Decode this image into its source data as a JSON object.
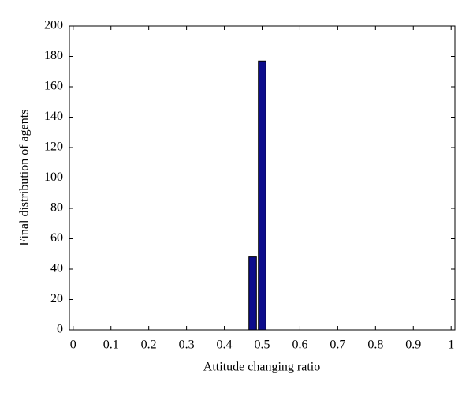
{
  "chart_data": {
    "type": "bar",
    "x": [
      0.475,
      0.5
    ],
    "values": [
      48,
      177
    ],
    "color": "#0c0c8c",
    "xlabel": "Attitude changing ratio",
    "ylabel": "Final distribution of agents",
    "xlim": [
      -0.01,
      1.01
    ],
    "xticks": [
      0,
      0.1,
      0.2,
      0.3,
      0.4,
      0.5,
      0.6,
      0.7,
      0.8,
      0.9,
      1
    ],
    "ylim": [
      0,
      200
    ],
    "yticks": [
      0,
      20,
      40,
      60,
      80,
      100,
      120,
      140,
      160,
      180,
      200
    ],
    "grid": false
  }
}
